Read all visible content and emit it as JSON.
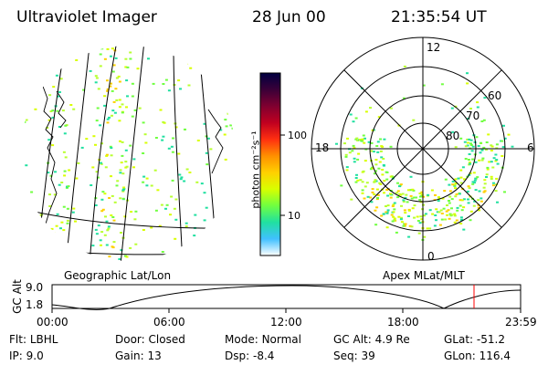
{
  "header": {
    "instrument": "Ultraviolet Imager",
    "date": "28 Jun 00",
    "time": "21:35:54 UT"
  },
  "left_panel": {
    "caption": "Geographic Lat/Lon"
  },
  "right_panel": {
    "caption": "Apex MLat/MLT",
    "hour_labels": {
      "top": "12",
      "left": "18",
      "right": "6",
      "bottom": "0"
    },
    "lat_labels": [
      "60",
      "70",
      "80"
    ]
  },
  "colorbar": {
    "unit_label": "photon cm⁻²s⁻¹",
    "ticks": [
      "100",
      "10"
    ],
    "colors": [
      "#000040",
      "#3a0038",
      "#800030",
      "#c00020",
      "#ff3010",
      "#ff9000",
      "#ffd000",
      "#d8ff00",
      "#70ff40",
      "#20e0a0",
      "#40c0ff",
      "#ffffff"
    ]
  },
  "altitude_plot": {
    "ylabel": "GC Alt",
    "y_ticks": [
      "9.0",
      "1.8"
    ],
    "x_ticks": [
      "00:00",
      "06:00",
      "12:00",
      "18:00",
      "23:59"
    ],
    "marker_color": "#ff0000"
  },
  "info": {
    "flt": {
      "label": "Flt:",
      "value": "LBHL"
    },
    "ip": {
      "label": "IP:",
      "value": "9.0"
    },
    "door": {
      "label": "Door:",
      "value": "Closed"
    },
    "gain": {
      "label": "Gain:",
      "value": "13"
    },
    "mode": {
      "label": "Mode:",
      "value": "Normal"
    },
    "dsp": {
      "label": "Dsp:",
      "value": "-8.4"
    },
    "gcalt": {
      "label": "GC Alt:",
      "value": "4.9 Re"
    },
    "seq": {
      "label": "Seq:",
      "value": "39"
    },
    "glat": {
      "label": "GLat:",
      "value": "-51.2"
    },
    "glon": {
      "label": "GLon:",
      "value": "116.4"
    }
  }
}
